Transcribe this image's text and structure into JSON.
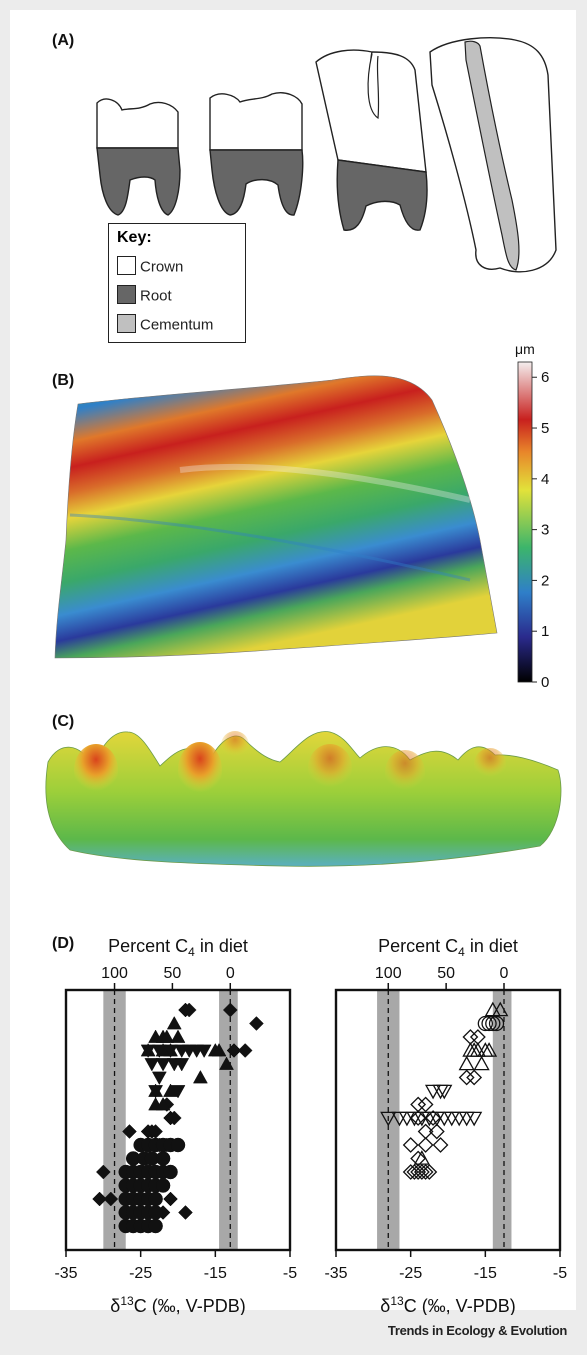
{
  "panels": {
    "a": {
      "label": "(A)"
    },
    "b": {
      "label": "(B)"
    },
    "c": {
      "label": "(C)"
    },
    "d": {
      "label": "(D)"
    }
  },
  "key": {
    "title": "Key:",
    "items": [
      {
        "label": "Crown",
        "color": "#ffffff"
      },
      {
        "label": "Root",
        "color": "#666666"
      },
      {
        "label": "Cementum",
        "color": "#c0c0c0"
      }
    ]
  },
  "colorbar": {
    "unit": "μm",
    "ticks": [
      "0",
      "1",
      "2",
      "3",
      "4",
      "5",
      "6"
    ],
    "colors": [
      "#000000",
      "#2a2a8c",
      "#2f7fc9",
      "#3cb56b",
      "#e2e23a",
      "#e8852a",
      "#c8201e",
      "#f0e8e8"
    ]
  },
  "chart_data": [
    {
      "type": "scatter",
      "top_axis_label": "Percent C4 in diet",
      "top_ticks": [
        "100",
        "50",
        "0"
      ],
      "xlabel": "δ13C (‰, V-PDB)",
      "x_ticks": [
        "-35",
        "-25",
        "-15",
        "-5"
      ],
      "xlim": [
        -35,
        -5
      ],
      "reference_lines": [
        -28.5,
        -13
      ],
      "reference_bands": [
        [
          -30,
          -27
        ],
        [
          -14.5,
          -12
        ]
      ],
      "marker_fill": "filled",
      "series": [
        {
          "marker": "diamond",
          "points": [
            [
              -19,
              1
            ],
            [
              -18.5,
              1
            ],
            [
              -13,
              1
            ],
            [
              -9.5,
              2
            ],
            [
              -12.5,
              4
            ],
            [
              -11,
              4
            ],
            [
              -21.5,
              8
            ],
            [
              -21,
              9
            ],
            [
              -20.5,
              9
            ],
            [
              -26.5,
              10
            ],
            [
              -24,
              10
            ],
            [
              -23.5,
              10
            ],
            [
              -23,
              10
            ],
            [
              -25,
              11
            ],
            [
              -24,
              11
            ],
            [
              -22.5,
              11
            ],
            [
              -21.5,
              11
            ],
            [
              -30,
              13
            ],
            [
              -23,
              13
            ],
            [
              -24,
              14
            ],
            [
              -23,
              14
            ],
            [
              -30.5,
              15
            ],
            [
              -29,
              15
            ],
            [
              -21,
              15
            ],
            [
              -24,
              16
            ],
            [
              -22,
              16
            ],
            [
              -19,
              16
            ]
          ]
        },
        {
          "marker": "triangle-up",
          "points": [
            [
              -20.5,
              2
            ],
            [
              -23,
              3
            ],
            [
              -22,
              3
            ],
            [
              -21.5,
              3
            ],
            [
              -20,
              3
            ],
            [
              -24,
              4
            ],
            [
              -22,
              4
            ],
            [
              -21,
              4
            ],
            [
              -15,
              4
            ],
            [
              -14.5,
              4
            ],
            [
              -13.5,
              5
            ],
            [
              -17,
              6
            ],
            [
              -23,
              7
            ],
            [
              -21,
              7
            ],
            [
              -23,
              8
            ],
            [
              -22,
              8
            ]
          ]
        },
        {
          "marker": "triangle-down",
          "points": [
            [
              -24,
              4
            ],
            [
              -22.5,
              4
            ],
            [
              -21,
              4
            ],
            [
              -19.5,
              4
            ],
            [
              -18.5,
              4
            ],
            [
              -17.5,
              4
            ],
            [
              -16.5,
              4
            ],
            [
              -23.5,
              5
            ],
            [
              -22,
              5
            ],
            [
              -20.5,
              5
            ],
            [
              -19.5,
              5
            ],
            [
              -22.5,
              6
            ],
            [
              -23,
              7
            ],
            [
              -20,
              7
            ]
          ]
        },
        {
          "marker": "circle",
          "points": [
            [
              -25,
              11
            ],
            [
              -24,
              11
            ],
            [
              -23,
              11
            ],
            [
              -22,
              11
            ],
            [
              -21,
              11
            ],
            [
              -20,
              11
            ],
            [
              -26,
              12
            ],
            [
              -24.5,
              12
            ],
            [
              -23.5,
              12
            ],
            [
              -22,
              12
            ],
            [
              -27,
              13
            ],
            [
              -26,
              13
            ],
            [
              -25,
              13
            ],
            [
              -24,
              13
            ],
            [
              -23,
              13
            ],
            [
              -22,
              13
            ],
            [
              -21,
              13
            ],
            [
              -27,
              14
            ],
            [
              -26,
              14
            ],
            [
              -25,
              14
            ],
            [
              -24,
              14
            ],
            [
              -23,
              14
            ],
            [
              -22,
              14
            ],
            [
              -27,
              15
            ],
            [
              -26,
              15
            ],
            [
              -25,
              15
            ],
            [
              -24,
              15
            ],
            [
              -23,
              15
            ],
            [
              -27,
              16
            ],
            [
              -26,
              16
            ],
            [
              -25,
              16
            ],
            [
              -24,
              16
            ],
            [
              -23,
              16
            ],
            [
              -27,
              17
            ],
            [
              -26,
              17
            ],
            [
              -25,
              17
            ],
            [
              -24,
              17
            ],
            [
              -23,
              17
            ]
          ]
        }
      ]
    },
    {
      "type": "scatter",
      "top_axis_label": "Percent C4 in diet",
      "top_ticks": [
        "100",
        "50",
        "0"
      ],
      "xlabel": "δ13C (‰, V-PDB)",
      "x_ticks": [
        "-35",
        "-25",
        "-15",
        "-5"
      ],
      "xlim": [
        -35,
        -5
      ],
      "reference_lines": [
        -28,
        -12.5
      ],
      "reference_bands": [
        [
          -29.5,
          -26.5
        ],
        [
          -14,
          -11.5
        ]
      ],
      "marker_fill": "open",
      "series": [
        {
          "marker": "triangle-up",
          "points": [
            [
              -14,
              1
            ],
            [
              -13,
              1
            ],
            [
              -17,
              4
            ],
            [
              -16.5,
              4
            ],
            [
              -16,
              4
            ],
            [
              -15,
              4
            ],
            [
              -14.5,
              4
            ],
            [
              -17.5,
              5
            ],
            [
              -15.5,
              5
            ],
            [
              -23.5,
              12
            ]
          ]
        },
        {
          "marker": "circle",
          "points": [
            [
              -15,
              2
            ],
            [
              -14.5,
              2
            ],
            [
              -14,
              2
            ],
            [
              -13.5,
              2
            ]
          ]
        },
        {
          "marker": "diamond",
          "points": [
            [
              -17,
              3
            ],
            [
              -16,
              3
            ],
            [
              -17.5,
              6
            ],
            [
              -16.5,
              6
            ],
            [
              -24,
              8
            ],
            [
              -23,
              8
            ],
            [
              -24,
              9
            ],
            [
              -22,
              9
            ],
            [
              -23,
              10
            ],
            [
              -21.5,
              10
            ],
            [
              -25,
              11
            ],
            [
              -23,
              11
            ],
            [
              -21,
              11
            ],
            [
              -24,
              12
            ],
            [
              -25,
              13
            ],
            [
              -24.5,
              13
            ],
            [
              -24,
              13
            ],
            [
              -23.5,
              13
            ],
            [
              -23,
              13
            ],
            [
              -22.5,
              13
            ]
          ]
        },
        {
          "marker": "triangle-down",
          "points": [
            [
              -22,
              7
            ],
            [
              -21,
              7
            ],
            [
              -20.5,
              7
            ],
            [
              -28,
              9
            ],
            [
              -26.5,
              9
            ],
            [
              -25.5,
              9
            ],
            [
              -24.5,
              9
            ],
            [
              -23.5,
              9
            ],
            [
              -22.5,
              9
            ],
            [
              -21.5,
              9
            ],
            [
              -20.5,
              9
            ],
            [
              -19.5,
              9
            ],
            [
              -18.5,
              9
            ],
            [
              -17.5,
              9
            ],
            [
              -16.5,
              9
            ]
          ]
        }
      ]
    }
  ],
  "footer": "Trends in Ecology & Evolution"
}
